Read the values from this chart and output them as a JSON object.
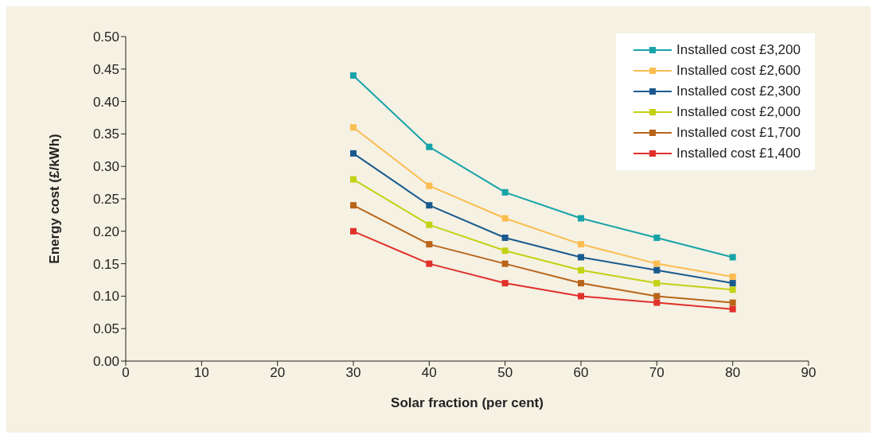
{
  "chart_data": {
    "type": "line",
    "xlabel": "Solar fraction (per cent)",
    "ylabel": "Energy cost (£/kWh)",
    "x": [
      30,
      40,
      50,
      60,
      70,
      80
    ],
    "series": [
      {
        "name": "Installed cost £3,200",
        "color": "#17a3a8",
        "values": [
          0.44,
          0.33,
          0.26,
          0.22,
          0.19,
          0.16
        ]
      },
      {
        "name": "Installed cost £2,600",
        "color": "#fbbd4f",
        "values": [
          0.36,
          0.27,
          0.22,
          0.18,
          0.15,
          0.13
        ]
      },
      {
        "name": "Installed cost £2,300",
        "color": "#1a5a8e",
        "values": [
          0.32,
          0.24,
          0.19,
          0.16,
          0.14,
          0.12
        ]
      },
      {
        "name": "Installed cost £2,000",
        "color": "#c3d214",
        "values": [
          0.28,
          0.21,
          0.17,
          0.14,
          0.12,
          0.11
        ]
      },
      {
        "name": "Installed cost £1,700",
        "color": "#b8651a",
        "values": [
          0.24,
          0.18,
          0.15,
          0.12,
          0.1,
          0.09
        ]
      },
      {
        "name": "Installed cost £1,400",
        "color": "#e0312a",
        "values": [
          0.2,
          0.15,
          0.12,
          0.1,
          0.09,
          0.08
        ]
      }
    ],
    "xlim": [
      0,
      90
    ],
    "xticks": [
      0,
      10,
      20,
      30,
      40,
      50,
      60,
      70,
      80,
      90
    ],
    "ylim": [
      0,
      0.5
    ],
    "yticks": [
      {
        "value": 0,
        "label": "0.00"
      },
      {
        "value": 0.05,
        "label": "0.05"
      },
      {
        "value": 0.1,
        "label": "0.10"
      },
      {
        "value": 0.15,
        "label": "0.15"
      },
      {
        "value": 0.2,
        "label": "0.20"
      },
      {
        "value": 0.25,
        "label": "0.25"
      },
      {
        "value": 0.3,
        "label": "0.30"
      },
      {
        "value": 0.35,
        "label": "0.35"
      },
      {
        "value": 0.4,
        "label": "0.40"
      },
      {
        "value": 0.45,
        "label": "0.45"
      },
      {
        "value": 0.5,
        "label": "0.50"
      }
    ],
    "grid": false,
    "legend": "top right",
    "marker": "square",
    "line_style": "solid"
  }
}
